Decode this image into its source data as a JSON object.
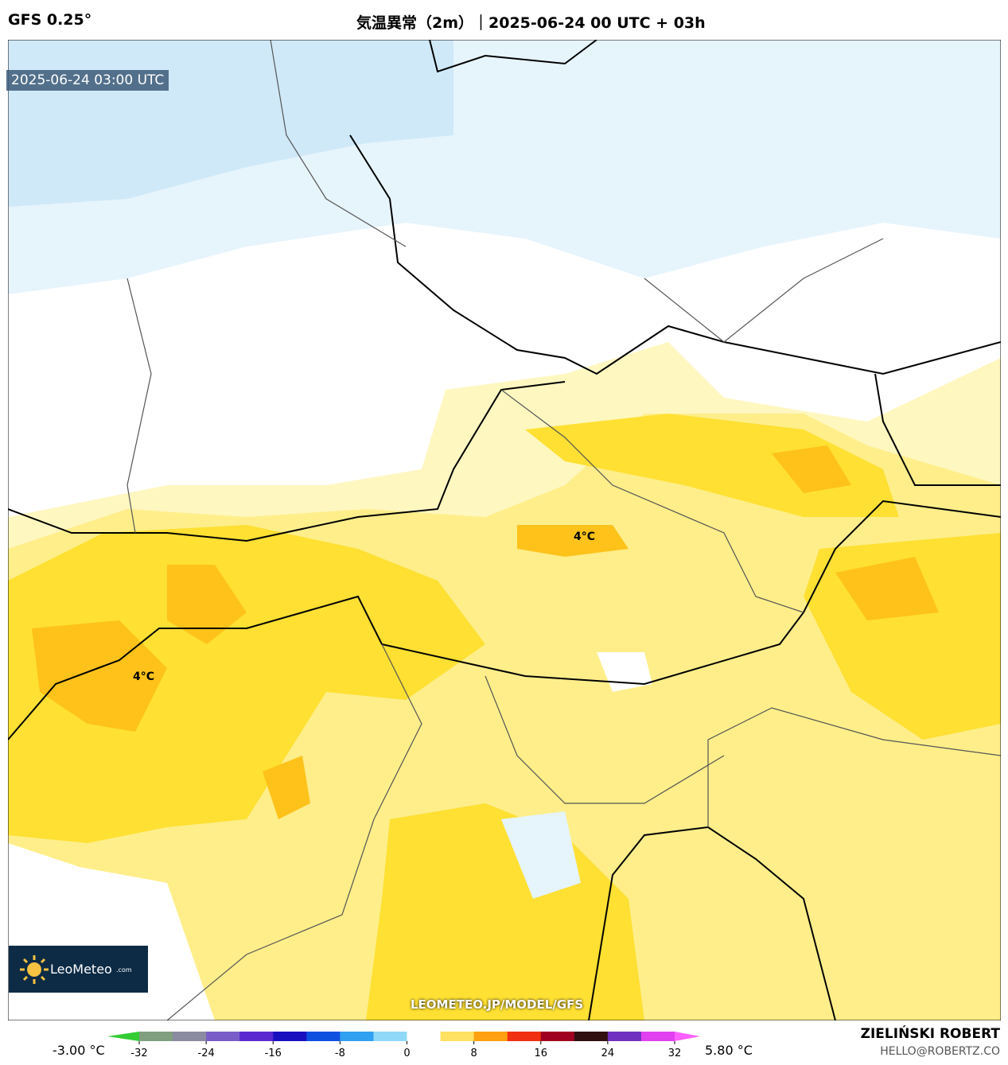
{
  "header": {
    "model": "GFS 0.25°",
    "title": "気温異常（2m）｜2025-06-24 00 UTC + 03h"
  },
  "map": {
    "timestamp": "2025-06-24 03:00 UTC",
    "annotations": [
      "4°C",
      "4°C"
    ],
    "watermark": "LEOMETEO.JP/MODEL/GFS",
    "logo": {
      "name": "LeoMeteo",
      "suffix": ".com"
    }
  },
  "colorbar": {
    "min_label": "-3.00 °C",
    "max_label": "5.80 °C",
    "range": [
      -32,
      32
    ],
    "ticks": [
      -32,
      -24,
      -16,
      -8,
      0,
      8,
      16,
      24,
      32
    ],
    "colors": [
      "#33cc33",
      "#7f9f7f",
      "#8a8aa0",
      "#7a5cc8",
      "#5a2ad0",
      "#1a10c0",
      "#1050e0",
      "#30a0f0",
      "#90d8f8",
      "#ffffff",
      "#ffe060",
      "#ffa010",
      "#f03010",
      "#a00020",
      "#301010",
      "#7030c0",
      "#e040f0",
      "#ff60ff"
    ]
  },
  "credit": {
    "author": "ZIELIŃSKI ROBERT",
    "email": "HELLO@ROBERTZ.CO"
  }
}
